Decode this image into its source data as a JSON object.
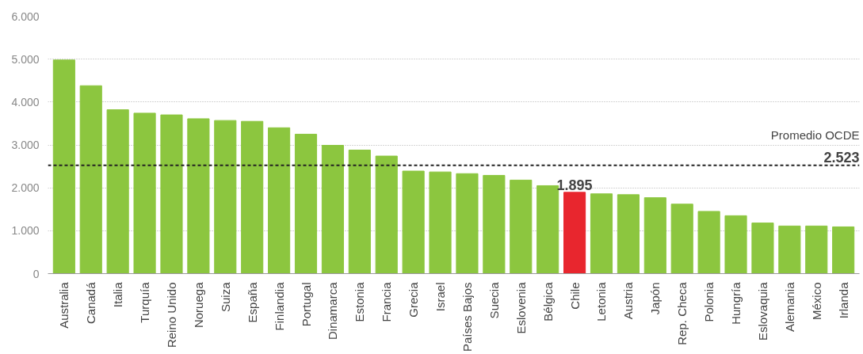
{
  "chart_data": {
    "type": "bar",
    "categories": [
      "Australia",
      "Canadá",
      "Italia",
      "Turquía",
      "Reino Unido",
      "Noruega",
      "Suiza",
      "España",
      "Finlandia",
      "Portugal",
      "Dinamarca",
      "Estonia",
      "Francia",
      "Grecia",
      "Israel",
      "Países Bajos",
      "Suecia",
      "Eslovenia",
      "Bélgica",
      "Chile",
      "Letonia",
      "Austria",
      "Japón",
      "Rep. Checa",
      "Polonia",
      "Hungría",
      "Eslovaquia",
      "Alemania",
      "México",
      "Irlanda"
    ],
    "values": [
      4980,
      4380,
      3820,
      3740,
      3700,
      3610,
      3570,
      3550,
      3400,
      3250,
      2990,
      2880,
      2740,
      2390,
      2370,
      2330,
      2290,
      2180,
      2050,
      1895,
      1860,
      1840,
      1770,
      1620,
      1450,
      1350,
      1180,
      1110,
      1110,
      1090
    ],
    "colors": [
      "#8cc63f",
      "#8cc63f",
      "#8cc63f",
      "#8cc63f",
      "#8cc63f",
      "#8cc63f",
      "#8cc63f",
      "#8cc63f",
      "#8cc63f",
      "#8cc63f",
      "#8cc63f",
      "#8cc63f",
      "#8cc63f",
      "#8cc63f",
      "#8cc63f",
      "#8cc63f",
      "#8cc63f",
      "#8cc63f",
      "#8cc63f",
      "#e8262e",
      "#8cc63f",
      "#8cc63f",
      "#8cc63f",
      "#8cc63f",
      "#8cc63f",
      "#8cc63f",
      "#8cc63f",
      "#8cc63f",
      "#8cc63f",
      "#8cc63f"
    ],
    "value_labels": [
      null,
      null,
      null,
      null,
      null,
      null,
      null,
      null,
      null,
      null,
      null,
      null,
      null,
      null,
      null,
      null,
      null,
      null,
      null,
      "1.895",
      null,
      null,
      null,
      null,
      null,
      null,
      null,
      null,
      null,
      null
    ],
    "ylim": [
      0,
      6000
    ],
    "yticks": [
      0,
      {
        "value": 1000,
        "label": "1.000"
      },
      {
        "value": 2000,
        "label": "2.000"
      },
      {
        "value": 3000,
        "label": "3.000"
      },
      {
        "value": 4000,
        "label": "4.000"
      },
      {
        "value": 5000,
        "label": "5.000"
      },
      {
        "value": 6000,
        "label": "6.000"
      }
    ],
    "grid": "y",
    "ref_lines": [
      {
        "axis": "y",
        "value": 2523,
        "label": "Promedio OCDE",
        "color": "#222222",
        "line_style": "dashed"
      }
    ],
    "annotations": [
      {
        "text": "2.523",
        "y": 2523
      }
    ]
  }
}
